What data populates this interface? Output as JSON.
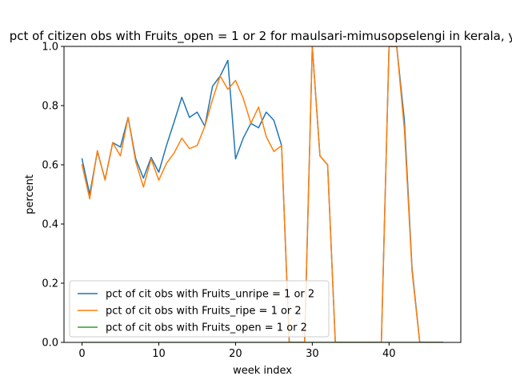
{
  "chart_data": {
    "type": "line",
    "title": "pct of citizen obs with Fruits_open = 1 or 2 for maulsari-mimusopselengi in kerala, y",
    "xlabel": "week index",
    "ylabel": "percent",
    "xlim": [
      -2.35,
      49.35
    ],
    "ylim": [
      0,
      1.0
    ],
    "xticks": [
      0,
      10,
      20,
      30,
      40
    ],
    "yticks": [
      0.0,
      0.2,
      0.4,
      0.6,
      0.8,
      1.0
    ],
    "ytick_labels": [
      "0.0",
      "0.2",
      "0.4",
      "0.6",
      "0.8",
      "1.0"
    ],
    "grid": false,
    "legend_position": "lower-left",
    "series": [
      {
        "name": "pct of cit obs with Fruits_unripe = 1 or 2",
        "color": "#1f77b4",
        "x": [
          0,
          1,
          2,
          3,
          4,
          5,
          6,
          7,
          8,
          9,
          10,
          11,
          12,
          13,
          14,
          15,
          16,
          17,
          18,
          19,
          20,
          21,
          22,
          23,
          24,
          25,
          26,
          27,
          28,
          29,
          30,
          31,
          32,
          33,
          34,
          35,
          36,
          37,
          38,
          39,
          40,
          41,
          42,
          43,
          44,
          45,
          46,
          47
        ],
        "values": [
          0.62,
          0.5,
          0.645,
          0.55,
          0.675,
          0.66,
          0.76,
          0.62,
          0.555,
          0.625,
          0.575,
          0.665,
          0.745,
          0.828,
          0.76,
          0.778,
          0.73,
          0.865,
          0.9,
          0.953,
          0.62,
          0.69,
          0.74,
          0.725,
          0.778,
          0.75,
          0.665,
          0.0,
          0.0,
          0.0,
          1.0,
          0.63,
          0.6,
          0.0,
          0.0,
          0.0,
          0.0,
          0.0,
          0.0,
          0.0,
          1.0,
          1.0,
          0.75,
          0.25,
          0.0,
          0.0,
          0.0,
          0.0
        ]
      },
      {
        "name": "pct of cit obs with Fruits_ripe = 1 or 2",
        "color": "#ff7f0e",
        "x": [
          0,
          1,
          2,
          3,
          4,
          5,
          6,
          7,
          8,
          9,
          10,
          11,
          12,
          13,
          14,
          15,
          16,
          17,
          18,
          19,
          20,
          21,
          22,
          23,
          24,
          25,
          26,
          27,
          28,
          29,
          30,
          31,
          32,
          33,
          34,
          35,
          36,
          37,
          38,
          39,
          40,
          41,
          42,
          43,
          44,
          45,
          46,
          47
        ],
        "values": [
          0.6,
          0.485,
          0.648,
          0.548,
          0.675,
          0.63,
          0.76,
          0.61,
          0.525,
          0.62,
          0.548,
          0.605,
          0.64,
          0.69,
          0.655,
          0.665,
          0.73,
          0.82,
          0.9,
          0.855,
          0.885,
          0.825,
          0.74,
          0.795,
          0.695,
          0.645,
          0.665,
          0.0,
          0.0,
          0.0,
          1.0,
          0.63,
          0.6,
          0.0,
          0.0,
          0.0,
          0.0,
          0.0,
          0.0,
          0.0,
          1.0,
          1.0,
          0.72,
          0.24,
          0.0,
          0.0,
          0.0,
          0.0
        ]
      },
      {
        "name": "pct of cit obs with Fruits_open = 1 or 2",
        "color": "#2ca02c",
        "x": [
          0,
          1,
          2,
          3,
          4,
          5,
          6,
          7,
          8,
          9,
          10,
          11,
          12,
          13,
          14,
          15,
          16,
          17,
          18,
          19,
          20,
          21,
          22,
          23,
          24,
          25,
          26,
          27,
          28,
          29,
          30,
          31,
          32,
          33,
          34,
          35,
          36,
          37,
          38,
          39,
          40,
          41,
          42,
          43,
          44,
          45,
          46,
          47
        ],
        "values": [
          0,
          0,
          0,
          0,
          0,
          0,
          0,
          0,
          0,
          0,
          0,
          0,
          0,
          0,
          0,
          0,
          0,
          0,
          0,
          0,
          0,
          0,
          0,
          0,
          0,
          0,
          0,
          0,
          0,
          0,
          0,
          0,
          0,
          0,
          0,
          0,
          0,
          0,
          0,
          0,
          0,
          0,
          0,
          0,
          0,
          0,
          0,
          0
        ]
      }
    ]
  }
}
